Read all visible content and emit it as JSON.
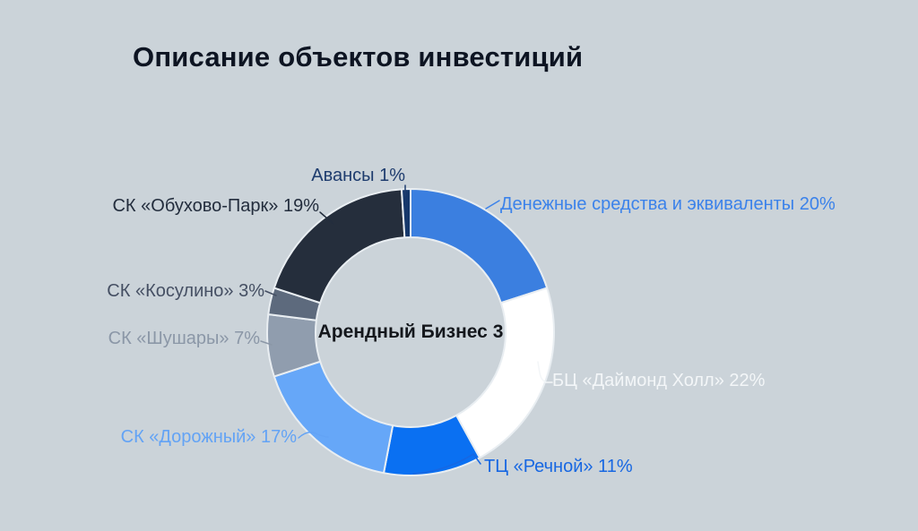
{
  "page": {
    "background": "#cbd3d9"
  },
  "title": "Описание объектов инвестиций",
  "chart_data": {
    "type": "pie",
    "donut": true,
    "center_label": "Арендный Бизнес 3",
    "units": "%",
    "start_angle_deg": 0,
    "direction": "clockwise",
    "legend_position": "around",
    "segments": [
      {
        "name": "Денежные средства и эквиваленты",
        "value": 20,
        "label": "Денежные средства и эквиваленты 20%",
        "color": "#3b7fe0",
        "label_color": "#3b82ea"
      },
      {
        "name": "БЦ «Даймонд Холл»",
        "value": 22,
        "label": "БЦ «Даймонд Холл» 22%",
        "color": "#ffffff",
        "label_color": "#f3f6f8"
      },
      {
        "name": "ТЦ «Речной»",
        "value": 11,
        "label": "ТЦ «Речной» 11%",
        "color": "#0a70f2",
        "label_color": "#1767e2"
      },
      {
        "name": "СК «Дорожный»",
        "value": 17,
        "label": "СК «Дорожный» 17%",
        "color": "#66a7f8",
        "label_color": "#63a3f5"
      },
      {
        "name": "СК «Шушары»",
        "value": 7,
        "label": "СК «Шушары» 7%",
        "color": "#909dae",
        "label_color": "#8b97a7"
      },
      {
        "name": "СК «Косулино»",
        "value": 3,
        "label": "СК «Косулино» 3%",
        "color": "#5d6a7d",
        "label_color": "#454f63"
      },
      {
        "name": "СК «Обухово-Парк»",
        "value": 19,
        "label": "СК «Обухово-Парк» 19%",
        "color": "#252e3c",
        "label_color": "#232d3d"
      },
      {
        "name": "Авансы",
        "value": 1,
        "label": "Авансы 1%",
        "color": "#16386b",
        "label_color": "#1e3c6e"
      }
    ]
  }
}
